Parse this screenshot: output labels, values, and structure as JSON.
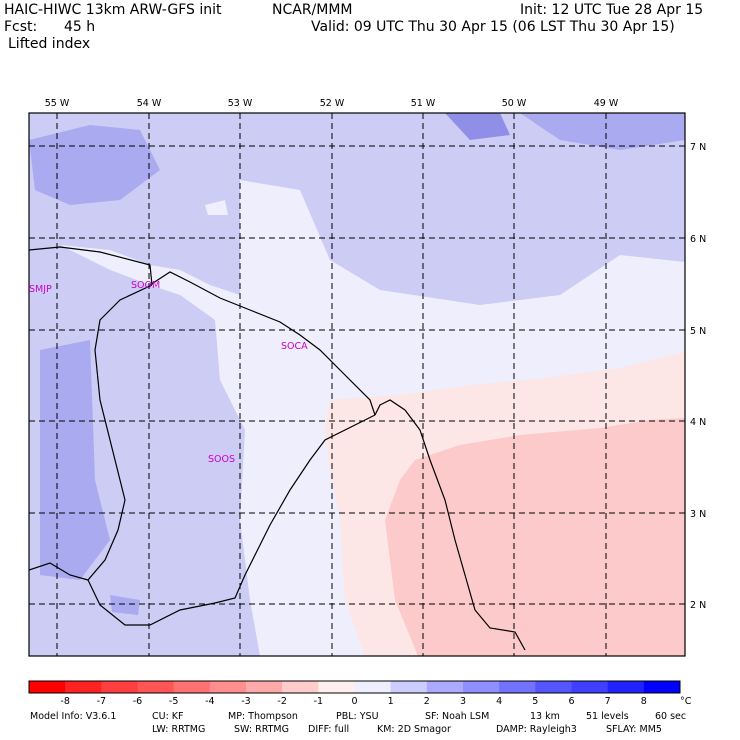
{
  "header": {
    "model": "HAIC-HIWC 13km ARW-GFS init",
    "org": "NCAR/MMM",
    "init": "Init: 12 UTC Tue 28 Apr 15",
    "fcst_label": "Fcst:",
    "fcst_value": "45 h",
    "valid": "Valid: 09 UTC Thu 30 Apr 15 (06 LST Thu 30 Apr 15)",
    "field": "Lifted index"
  },
  "map": {
    "lon_labels": [
      "55 W",
      "54 W",
      "53 W",
      "52 W",
      "51 W",
      "50 W",
      "49 W"
    ],
    "lat_labels": [
      "7 N",
      "6 N",
      "5 N",
      "4 N",
      "3 N",
      "2 N"
    ],
    "stations": [
      "SMJP",
      "SOOM",
      "SOCA",
      "SOOS"
    ],
    "colors": {
      "blue_1": "#ccccf5",
      "blue_2": "#aaaaf0",
      "blue_3": "#8f8fe8",
      "white_0": "#eeeefc",
      "pink_1": "#fde6e6",
      "pink_2": "#fccaca",
      "coast": "#000000",
      "station_text": "#cc00cc"
    }
  },
  "colorbar": {
    "ticks": [
      "-8",
      "-7",
      "-6",
      "-5",
      "-4",
      "-3",
      "-2",
      "-1",
      "0",
      "1",
      "2",
      "3",
      "4",
      "5",
      "6",
      "7",
      "8"
    ],
    "unit": "°C",
    "colors": [
      "#ff0000",
      "#ff2222",
      "#ff3f3f",
      "#ff5555",
      "#ff7272",
      "#ff8f8f",
      "#ffaaaa",
      "#ffcccc",
      "#ffeeee",
      "#eeeeff",
      "#ccccff",
      "#aaaaff",
      "#8f8fff",
      "#7272ff",
      "#5555ff",
      "#3f3fff",
      "#2222ff",
      "#0000ff"
    ]
  },
  "footer": {
    "line1": [
      "Model Info: V3.6.1",
      "CU: KF",
      "MP: Thompson",
      "PBL: YSU",
      "SF: Noah LSM",
      "13 km",
      "51 levels",
      "60 sec"
    ],
    "line2": [
      "LW: RRTMG",
      "SW: RRTMG",
      "DIFF: full",
      "KM: 2D Smagor",
      "DAMP: Rayleigh3",
      "SFLAY: MM5"
    ]
  }
}
